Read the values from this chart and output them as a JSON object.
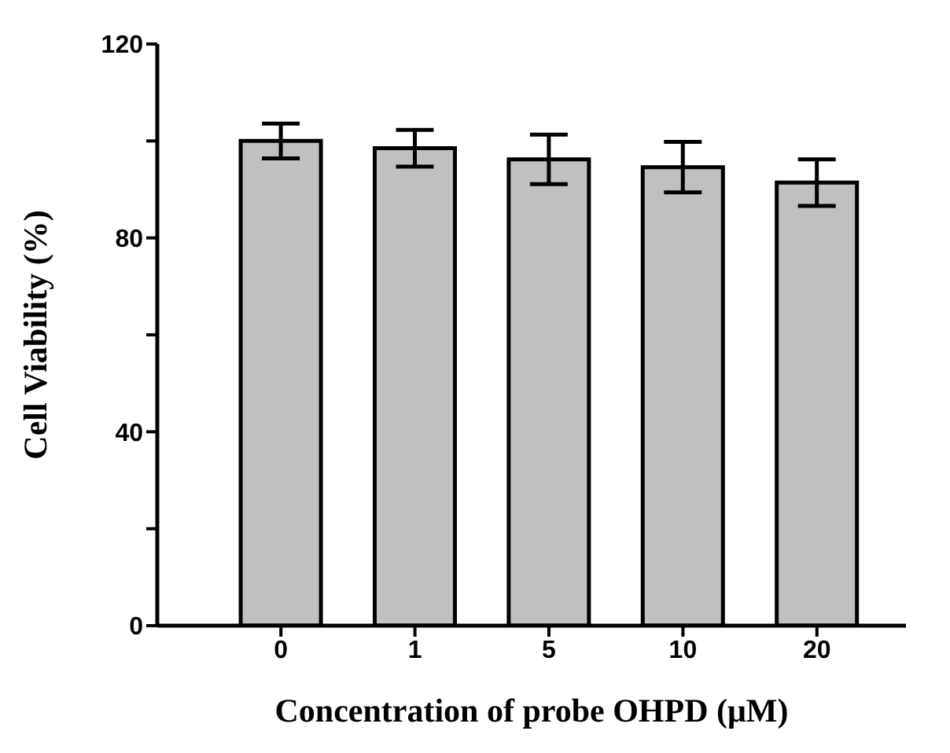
{
  "chart_data": {
    "type": "bar",
    "xlabel": "Concentration of probe OHPD  (μM)",
    "ylabel": "Cell Viability (%)",
    "categories": [
      "0",
      "1",
      "5",
      "10",
      "20"
    ],
    "values": [
      100,
      98.5,
      96.2,
      94.6,
      91.4
    ],
    "errors": [
      3.6,
      3.8,
      5.1,
      5.2,
      4.8
    ],
    "color": "#c0c0c0",
    "ylim": [
      0,
      120
    ],
    "yticks": [
      0,
      {
        "value": 20,
        "label": null
      },
      40,
      {
        "value": 60,
        "label": null
      },
      80,
      {
        "value": 100,
        "label": null
      },
      120
    ],
    "grid": false,
    "legend": false
  }
}
